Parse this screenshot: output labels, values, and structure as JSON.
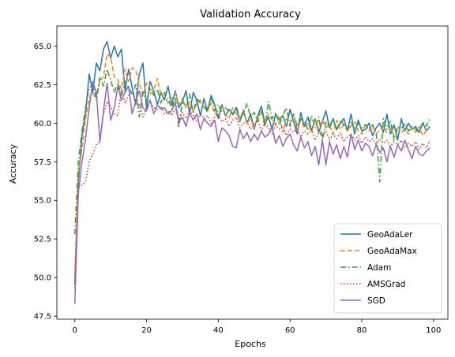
{
  "chart_data": {
    "type": "line",
    "title": "Validation Accuracy",
    "xlabel": "Epochs",
    "ylabel": "Accuracy",
    "xlim": [
      -5,
      104
    ],
    "ylim": [
      47.3,
      66.3
    ],
    "xticks": [
      0,
      20,
      40,
      60,
      80,
      100
    ],
    "yticks": [
      47.5,
      50.0,
      52.5,
      55.0,
      57.5,
      60.0,
      62.5,
      65.0
    ],
    "grid": false,
    "legend_position": "lower-right",
    "x": [
      0,
      1,
      2,
      3,
      4,
      5,
      6,
      7,
      8,
      9,
      10,
      11,
      12,
      13,
      14,
      15,
      16,
      17,
      18,
      19,
      20,
      21,
      22,
      23,
      24,
      25,
      26,
      27,
      28,
      29,
      30,
      31,
      32,
      33,
      34,
      35,
      36,
      37,
      38,
      39,
      40,
      41,
      42,
      43,
      44,
      45,
      46,
      47,
      48,
      49,
      50,
      51,
      52,
      53,
      54,
      55,
      56,
      57,
      58,
      59,
      60,
      61,
      62,
      63,
      64,
      65,
      66,
      67,
      68,
      69,
      70,
      71,
      72,
      73,
      74,
      75,
      76,
      77,
      78,
      79,
      80,
      81,
      82,
      83,
      84,
      85,
      86,
      87,
      88,
      89,
      90,
      91,
      92,
      93,
      94,
      95,
      96,
      97,
      98,
      99
    ],
    "series": [
      {
        "name": "GeoAdaLer",
        "color": "#1f77b4",
        "dash": "solid",
        "values": [
          49.5,
          56.2,
          59.2,
          60.6,
          63.2,
          62.0,
          63.9,
          63.4,
          64.8,
          65.3,
          64.2,
          65.0,
          64.3,
          64.8,
          62.1,
          63.5,
          62.3,
          61.2,
          63.2,
          63.9,
          61.0,
          62.7,
          62.1,
          61.2,
          62.0,
          61.5,
          62.4,
          61.2,
          62.1,
          61.0,
          61.4,
          62.1,
          60.6,
          62.0,
          61.5,
          60.5,
          61.6,
          60.8,
          61.8,
          61.2,
          60.3,
          61.2,
          60.5,
          60.9,
          60.6,
          61.0,
          60.1,
          60.8,
          60.0,
          60.6,
          59.6,
          60.5,
          61.1,
          60.0,
          60.4,
          59.6,
          60.6,
          60.2,
          60.5,
          59.8,
          60.9,
          60.1,
          59.3,
          60.7,
          59.8,
          60.4,
          59.5,
          60.3,
          59.4,
          60.1,
          60.8,
          59.7,
          60.3,
          59.6,
          60.0,
          60.3,
          59.5,
          60.6,
          59.3,
          60.2,
          59.5,
          59.6,
          60.0,
          59.2,
          59.7,
          60.0,
          59.4,
          60.6,
          59.3,
          59.9,
          58.9,
          60.3,
          59.5,
          60.0,
          59.6,
          59.8,
          59.4,
          60.0,
          59.5,
          59.8
        ]
      },
      {
        "name": "GeoAdaMax",
        "color": "#ff7f0e",
        "dash": "dashed",
        "values": [
          50.2,
          56.8,
          58.4,
          60.3,
          61.6,
          62.0,
          61.5,
          62.8,
          63.0,
          64.5,
          64.3,
          63.0,
          62.8,
          62.2,
          63.5,
          62.7,
          63.6,
          63.4,
          62.6,
          61.8,
          62.6,
          61.9,
          62.1,
          62.9,
          61.8,
          61.8,
          61.3,
          61.6,
          62.0,
          61.2,
          61.6,
          61.0,
          61.4,
          60.7,
          61.3,
          61.5,
          61.0,
          60.8,
          61.3,
          60.6,
          60.8,
          61.2,
          60.6,
          60.3,
          61.0,
          60.6,
          60.2,
          60.9,
          60.0,
          60.3,
          59.7,
          60.4,
          60.8,
          59.9,
          60.6,
          60.2,
          59.9,
          60.5,
          59.4,
          60.3,
          60.0,
          60.6,
          59.5,
          60.2,
          59.7,
          60.0,
          59.4,
          60.3,
          59.6,
          60.2,
          59.7,
          59.9,
          59.3,
          60.2,
          59.6,
          59.9,
          59.5,
          59.8,
          60.1,
          59.5,
          59.3,
          60.0,
          59.5,
          59.8,
          59.3,
          59.6,
          59.8,
          59.4,
          59.7,
          59.2,
          59.8,
          59.4,
          59.6,
          59.3,
          59.7,
          59.4,
          59.8,
          59.2,
          59.5,
          59.6
        ]
      },
      {
        "name": "Adam",
        "color": "#2ca02c",
        "dash": "dashdot",
        "values": [
          52.8,
          57.5,
          59.5,
          61.0,
          62.3,
          62.5,
          61.6,
          63.0,
          62.4,
          63.5,
          62.8,
          62.0,
          62.6,
          61.8,
          62.7,
          62.3,
          61.9,
          62.5,
          60.4,
          62.1,
          61.5,
          62.3,
          61.8,
          62.2,
          61.3,
          62.0,
          61.6,
          60.9,
          61.7,
          59.7,
          61.5,
          61.0,
          61.9,
          60.7,
          61.6,
          61.3,
          61.2,
          60.7,
          61.7,
          60.8,
          61.2,
          60.7,
          61.0,
          60.8,
          60.5,
          61.1,
          60.3,
          60.6,
          61.3,
          60.4,
          60.7,
          60.1,
          60.8,
          59.8,
          61.4,
          60.3,
          60.7,
          59.9,
          60.5,
          61.0,
          59.8,
          60.6,
          59.8,
          60.3,
          60.1,
          59.6,
          60.5,
          59.7,
          60.4,
          58.9,
          60.1,
          59.8,
          60.3,
          59.5,
          60.2,
          59.9,
          59.5,
          60.1,
          59.6,
          60.0,
          59.7,
          59.9,
          59.6,
          59.9,
          59.4,
          56.2,
          60.3,
          59.6,
          60.2,
          58.9,
          59.7,
          59.6,
          60.0,
          59.5,
          59.8,
          59.6,
          59.4,
          60.1,
          59.8,
          60.3
        ]
      },
      {
        "name": "AMSGrad",
        "color": "#d62728",
        "dash": "dotted",
        "values": [
          49.3,
          55.8,
          56.0,
          56.2,
          57.5,
          58.0,
          58.6,
          58.8,
          60.6,
          61.4,
          61.1,
          60.6,
          60.5,
          62.1,
          61.3,
          61.8,
          62.0,
          61.5,
          61.2,
          60.4,
          61.0,
          61.4,
          61.0,
          60.9,
          61.1,
          60.6,
          60.8,
          60.5,
          60.9,
          60.2,
          60.7,
          60.3,
          60.8,
          60.5,
          60.1,
          60.6,
          60.3,
          60.5,
          60.0,
          60.4,
          60.6,
          60.1,
          60.3,
          59.8,
          60.2,
          60.4,
          59.7,
          60.0,
          60.1,
          59.6,
          59.9,
          60.2,
          59.5,
          60.0,
          59.7,
          59.3,
          59.9,
          59.6,
          59.8,
          59.2,
          59.6,
          59.4,
          59.7,
          59.1,
          59.5,
          59.3,
          59.6,
          58.9,
          59.4,
          59.2,
          59.5,
          58.9,
          59.3,
          59.0,
          59.4,
          58.8,
          59.1,
          59.3,
          58.9,
          59.2,
          58.7,
          59.1,
          58.8,
          59.0,
          58.6,
          59.0,
          58.7,
          58.9,
          58.5,
          58.8,
          58.6,
          58.9,
          58.4,
          58.7,
          58.5,
          58.8,
          58.3,
          58.7,
          58.4,
          58.9
        ]
      },
      {
        "name": "SGD",
        "color": "#9467bd",
        "dash": "solid",
        "values": [
          48.3,
          55.5,
          57.5,
          59.0,
          61.0,
          62.7,
          62.0,
          58.8,
          60.8,
          62.6,
          60.2,
          61.0,
          62.4,
          61.5,
          62.0,
          62.4,
          60.6,
          61.4,
          62.1,
          61.0,
          60.8,
          61.5,
          60.6,
          61.2,
          60.9,
          61.0,
          60.6,
          60.8,
          61.3,
          60.1,
          60.4,
          59.8,
          60.7,
          60.2,
          60.6,
          59.6,
          60.3,
          60.0,
          59.8,
          60.2,
          58.8,
          59.7,
          59.5,
          59.2,
          58.5,
          58.4,
          59.6,
          59.0,
          59.4,
          58.8,
          59.3,
          58.9,
          59.5,
          59.1,
          59.3,
          59.8,
          58.7,
          59.2,
          58.5,
          59.0,
          59.3,
          58.6,
          58.2,
          59.1,
          58.4,
          58.8,
          57.9,
          58.5,
          57.3,
          58.9,
          57.3,
          58.8,
          58.0,
          58.6,
          57.7,
          58.5,
          57.8,
          59.3,
          58.3,
          58.9,
          58.2,
          58.7,
          58.5,
          57.9,
          58.6,
          58.1,
          58.4,
          57.5,
          58.5,
          57.8,
          58.6,
          58.2,
          58.9,
          58.3,
          57.7,
          58.5,
          58.0,
          57.9,
          58.2,
          58.4
        ]
      }
    ]
  }
}
